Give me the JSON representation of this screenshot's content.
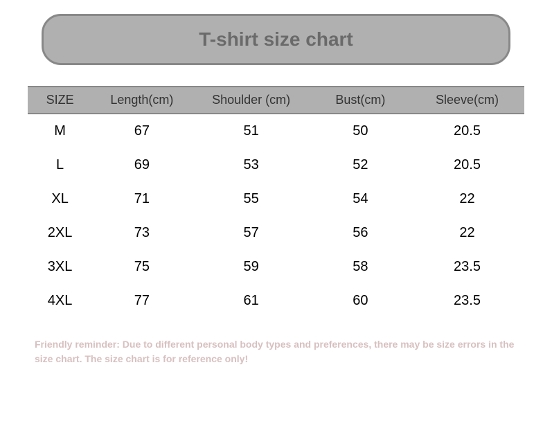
{
  "title": "T-shirt size chart",
  "table": {
    "columns": [
      "SIZE",
      "Length(cm)",
      "Shoulder (cm)",
      "Bust(cm)",
      "Sleeve(cm)"
    ],
    "rows": [
      [
        "M",
        "67",
        "51",
        "50",
        "20.5"
      ],
      [
        "L",
        "69",
        "53",
        "52",
        "20.5"
      ],
      [
        "XL",
        "71",
        "55",
        "54",
        "22"
      ],
      [
        "2XL",
        "73",
        "57",
        "56",
        "22"
      ],
      [
        "3XL",
        "75",
        "59",
        "58",
        "23.5"
      ],
      [
        "4XL",
        "77",
        "61",
        "60",
        "23.5"
      ]
    ],
    "column_widths_pct": [
      13,
      20,
      24,
      20,
      23
    ],
    "header_bg": "#b0b0b0",
    "header_border": "#888888",
    "header_text_color": "#333333",
    "header_fontsize": 18,
    "data_text_color": "#000000",
    "data_fontsize": 20
  },
  "title_box": {
    "bg_color": "#b0b0b0",
    "border_color": "#888888",
    "border_radius": 28,
    "text_color": "#6a6a6a",
    "fontsize": 28
  },
  "footer": {
    "text": "Friendly reminder: Due to different personal body types and preferences, there may be size errors in the size chart. The size chart is for reference only!",
    "color": "#d8c0c0",
    "fontsize": 14
  },
  "background_color": "#ffffff"
}
